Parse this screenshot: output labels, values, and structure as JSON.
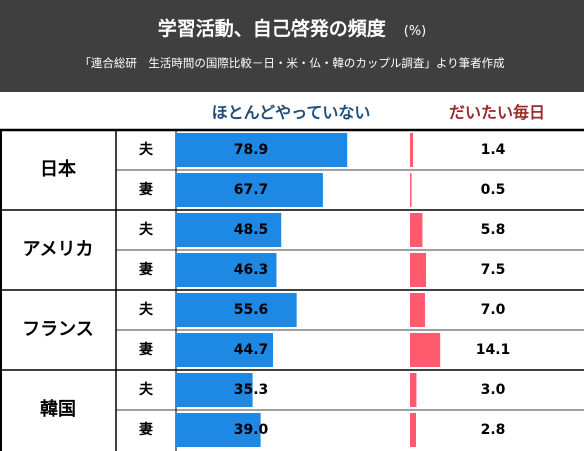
{
  "header": {
    "title": "学習活動、自己啓発の頻度",
    "unit": "(%)",
    "source": "「連合総研　生活時間の国際比較－日・米・仏・韓のカップル調査」より筆者作成"
  },
  "columns": {
    "left": "ほとんどやっていない",
    "right": "だいたい毎日"
  },
  "colors": {
    "header_bg": "#3f3f3f",
    "left_bar": "#1e88e5",
    "right_bar": "#ff5a6e",
    "left_head": "#1f4e79",
    "right_head": "#9b2a2a"
  },
  "chart_data": {
    "type": "bar",
    "title": "学習活動、自己啓発の頻度",
    "unit": "(%)",
    "groups": [
      {
        "country": "日本",
        "rows": [
          {
            "role": "夫",
            "rarely": 78.9,
            "daily": 1.4
          },
          {
            "role": "妻",
            "rarely": 67.7,
            "daily": 0.5
          }
        ]
      },
      {
        "country": "アメリカ",
        "rows": [
          {
            "role": "夫",
            "rarely": 48.5,
            "daily": 5.8
          },
          {
            "role": "妻",
            "rarely": 46.3,
            "daily": 7.5
          }
        ]
      },
      {
        "country": "フランス",
        "rows": [
          {
            "role": "夫",
            "rarely": 55.6,
            "daily": 7.0
          },
          {
            "role": "妻",
            "rarely": 44.7,
            "daily": 14.1
          }
        ]
      },
      {
        "country": "韓国",
        "rows": [
          {
            "role": "夫",
            "rarely": 35.3,
            "daily": 3.0
          },
          {
            "role": "妻",
            "rarely": 39.0,
            "daily": 2.8
          }
        ]
      }
    ],
    "series": [
      {
        "name": "ほとんどやっていない",
        "key": "rarely"
      },
      {
        "name": "だいたい毎日",
        "key": "daily"
      }
    ]
  }
}
